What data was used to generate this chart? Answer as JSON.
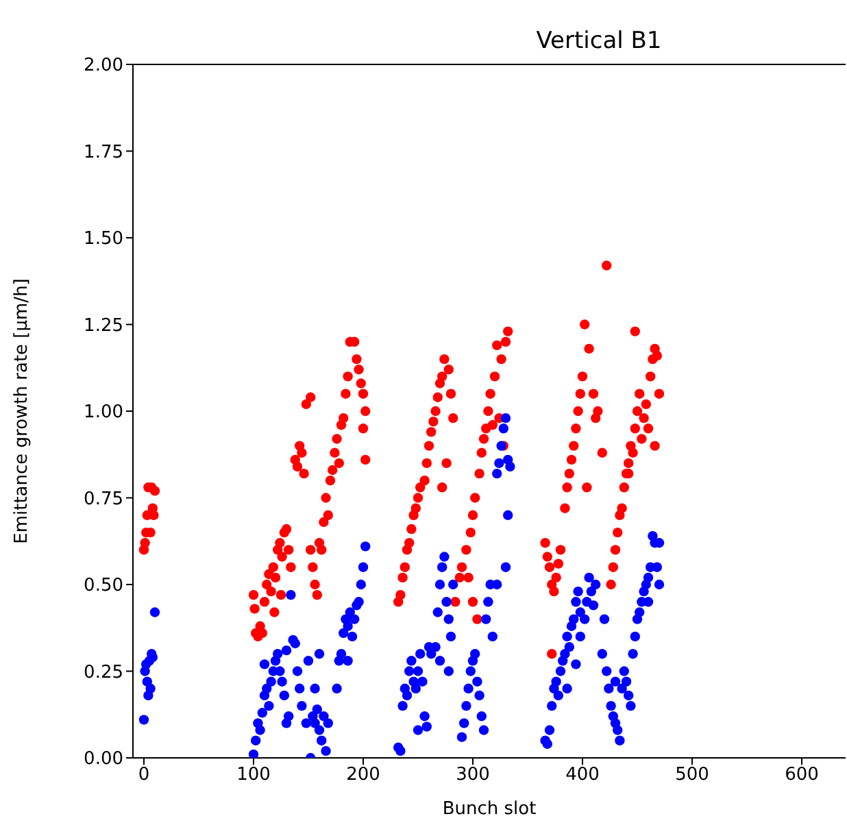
{
  "chart_data": {
    "type": "scatter",
    "title": "Vertical B1",
    "xlabel": "Bunch slot",
    "ylabel": "Emittance growth rate [µm/h]",
    "marker": "circle",
    "xlim": [
      -10,
      640
    ],
    "xticks": [
      0,
      100,
      200,
      300,
      400,
      500,
      600
    ],
    "ylim": [
      0,
      2
    ],
    "yticks": [
      {
        "value": 0,
        "label": "0.00"
      },
      {
        "value": 0.25,
        "label": "0.25"
      },
      {
        "value": 0.5,
        "label": "0.50"
      },
      {
        "value": 0.75,
        "label": "0.75"
      },
      {
        "value": 1,
        "label": "1.00"
      },
      {
        "value": 1.25,
        "label": "1.25"
      },
      {
        "value": 1.5,
        "label": "1.50"
      },
      {
        "value": 1.75,
        "label": "1.75"
      },
      {
        "value": 2,
        "label": "2.00"
      }
    ],
    "series": [
      {
        "color": "#ff0000",
        "x": [
          0,
          1,
          2,
          3,
          4,
          6,
          7,
          8,
          9,
          10,
          100,
          101,
          102,
          104,
          106,
          108,
          110,
          112,
          114,
          116,
          118,
          119,
          120,
          122,
          124,
          125,
          126,
          128,
          130,
          132,
          134,
          138,
          140,
          142,
          144,
          146,
          148,
          152,
          152,
          154,
          156,
          158,
          160,
          162,
          164,
          166,
          168,
          170,
          172,
          174,
          176,
          178,
          180,
          182,
          184,
          186,
          188,
          192,
          194,
          196,
          198,
          200,
          200,
          202,
          202,
          232,
          234,
          236,
          238,
          240,
          242,
          244,
          246,
          248,
          250,
          252,
          256,
          258,
          260,
          262,
          264,
          266,
          268,
          270,
          272,
          272,
          274,
          276,
          278,
          280,
          282,
          284,
          288,
          290,
          294,
          296,
          298,
          300,
          300,
          302,
          304,
          306,
          308,
          310,
          312,
          314,
          316,
          318,
          320,
          322,
          324,
          326,
          328,
          330,
          332,
          366,
          368,
          370,
          372,
          372,
          374,
          376,
          378,
          380,
          384,
          386,
          388,
          390,
          392,
          394,
          396,
          398,
          400,
          402,
          404,
          406,
          410,
          412,
          414,
          418,
          422,
          426,
          428,
          430,
          432,
          434,
          436,
          438,
          440,
          442,
          442,
          444,
          446,
          448,
          448,
          450,
          452,
          454,
          456,
          458,
          460,
          462,
          464,
          466,
          466,
          468,
          470
        ],
        "values": [
          0.6,
          0.62,
          0.65,
          0.7,
          0.78,
          0.65,
          0.78,
          0.72,
          0.7,
          0.77,
          0.47,
          0.43,
          0.36,
          0.35,
          0.38,
          0.36,
          0.45,
          0.5,
          0.53,
          0.48,
          0.55,
          0.42,
          0.52,
          0.6,
          0.62,
          0.47,
          0.58,
          0.65,
          0.66,
          0.6,
          0.55,
          0.86,
          0.84,
          0.9,
          0.88,
          0.82,
          1.02,
          1.04,
          0.6,
          0.55,
          0.5,
          0.47,
          0.62,
          0.6,
          0.68,
          0.75,
          0.7,
          0.8,
          0.83,
          0.88,
          0.92,
          0.85,
          0.96,
          0.98,
          1.05,
          1.1,
          1.2,
          1.2,
          1.15,
          1.12,
          1.08,
          1.05,
          0.95,
          1.0,
          0.86,
          0.45,
          0.47,
          0.52,
          0.55,
          0.6,
          0.62,
          0.66,
          0.7,
          0.72,
          0.75,
          0.78,
          0.8,
          0.85,
          0.9,
          0.94,
          0.97,
          1.0,
          1.04,
          1.08,
          1.1,
          0.78,
          1.15,
          0.85,
          1.12,
          1.05,
          0.98,
          0.45,
          0.52,
          0.55,
          0.6,
          0.52,
          0.65,
          0.7,
          0.45,
          0.75,
          0.4,
          0.82,
          0.88,
          0.92,
          0.95,
          1.0,
          1.05,
          0.96,
          1.1,
          1.19,
          0.98,
          1.15,
          0.9,
          1.2,
          1.23,
          0.62,
          0.58,
          0.55,
          0.5,
          0.3,
          0.48,
          0.52,
          0.56,
          0.6,
          0.72,
          0.78,
          0.82,
          0.86,
          0.9,
          0.95,
          1.0,
          1.05,
          1.1,
          1.25,
          0.78,
          1.18,
          1.05,
          0.98,
          1.0,
          0.88,
          1.42,
          0.5,
          0.55,
          0.6,
          0.65,
          0.7,
          0.72,
          0.78,
          0.82,
          0.85,
          0.82,
          0.9,
          0.88,
          0.95,
          1.23,
          1.0,
          1.05,
          0.92,
          0.98,
          1.02,
          0.95,
          1.1,
          1.15,
          1.18,
          0.9,
          1.16,
          1.05
        ]
      },
      {
        "color": "#0000ff",
        "x": [
          0,
          1,
          2,
          3,
          4,
          5,
          6,
          7,
          8,
          10,
          100,
          102,
          104,
          106,
          108,
          110,
          110,
          112,
          114,
          116,
          118,
          120,
          122,
          124,
          126,
          128,
          130,
          130,
          132,
          134,
          136,
          138,
          140,
          142,
          144,
          148,
          150,
          152,
          154,
          156,
          156,
          158,
          160,
          160,
          162,
          164,
          166,
          168,
          176,
          178,
          180,
          182,
          184,
          186,
          186,
          188,
          190,
          192,
          194,
          196,
          198,
          200,
          202,
          232,
          234,
          236,
          238,
          240,
          242,
          244,
          246,
          248,
          250,
          250,
          252,
          254,
          256,
          258,
          260,
          262,
          266,
          268,
          270,
          270,
          272,
          274,
          276,
          278,
          278,
          280,
          282,
          290,
          292,
          294,
          296,
          298,
          300,
          302,
          304,
          306,
          308,
          310,
          312,
          314,
          316,
          318,
          322,
          322,
          324,
          326,
          328,
          330,
          330,
          332,
          332,
          334,
          366,
          368,
          370,
          372,
          374,
          376,
          378,
          380,
          382,
          384,
          386,
          386,
          388,
          390,
          392,
          394,
          394,
          396,
          398,
          398,
          402,
          404,
          406,
          408,
          410,
          412,
          418,
          420,
          422,
          424,
          426,
          428,
          430,
          430,
          432,
          434,
          436,
          438,
          440,
          442,
          444,
          446,
          448,
          450,
          452,
          454,
          456,
          458,
          460,
          460,
          462,
          464,
          466,
          468,
          470,
          470
        ],
        "values": [
          0.11,
          0.25,
          0.27,
          0.22,
          0.18,
          0.28,
          0.2,
          0.3,
          0.29,
          0.42,
          0.01,
          0.05,
          0.1,
          0.08,
          0.13,
          0.18,
          0.27,
          0.2,
          0.15,
          0.22,
          0.25,
          0.28,
          0.3,
          0.25,
          0.22,
          0.18,
          0.31,
          0.1,
          0.12,
          0.47,
          0.34,
          0.33,
          0.25,
          0.2,
          0.15,
          0.1,
          0.28,
          0.0,
          0.12,
          0.1,
          0.2,
          0.14,
          0.08,
          0.3,
          0.05,
          0.12,
          0.02,
          0.1,
          0.2,
          0.28,
          0.3,
          0.36,
          0.4,
          0.38,
          0.28,
          0.42,
          0.35,
          0.4,
          0.44,
          0.45,
          0.5,
          0.55,
          0.61,
          0.03,
          0.02,
          0.15,
          0.2,
          0.18,
          0.25,
          0.28,
          0.22,
          0.2,
          0.25,
          0.08,
          0.3,
          0.22,
          0.12,
          0.09,
          0.32,
          0.3,
          0.32,
          0.42,
          0.5,
          0.28,
          0.55,
          0.58,
          0.45,
          0.4,
          0.25,
          0.35,
          0.5,
          0.06,
          0.1,
          0.15,
          0.2,
          0.25,
          0.28,
          0.3,
          0.22,
          0.18,
          0.12,
          0.08,
          0.4,
          0.45,
          0.5,
          0.35,
          0.82,
          0.5,
          0.85,
          0.9,
          0.95,
          0.98,
          0.55,
          0.86,
          0.7,
          0.84,
          0.05,
          0.04,
          0.08,
          0.15,
          0.2,
          0.22,
          0.18,
          0.25,
          0.28,
          0.3,
          0.35,
          0.2,
          0.32,
          0.38,
          0.4,
          0.45,
          0.27,
          0.48,
          0.42,
          0.35,
          0.4,
          0.45,
          0.52,
          0.48,
          0.44,
          0.5,
          0.3,
          0.4,
          0.25,
          0.2,
          0.15,
          0.12,
          0.1,
          0.22,
          0.08,
          0.05,
          0.2,
          0.25,
          0.22,
          0.18,
          0.15,
          0.3,
          0.35,
          0.4,
          0.42,
          0.45,
          0.48,
          0.5,
          0.52,
          0.45,
          0.55,
          0.64,
          0.62,
          0.55,
          0.5,
          0.62
        ]
      }
    ]
  }
}
